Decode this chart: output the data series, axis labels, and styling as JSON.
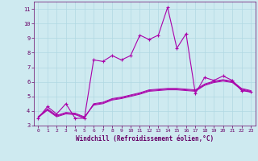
{
  "xlabel": "Windchill (Refroidissement éolien,°C)",
  "bg_color": "#ceeaf0",
  "grid_color": "#b0d8e2",
  "line_color": "#aa00aa",
  "xlim": [
    -0.5,
    23.5
  ],
  "ylim": [
    3.0,
    11.5
  ],
  "yticks": [
    3,
    4,
    5,
    6,
    7,
    8,
    9,
    10,
    11
  ],
  "xticks": [
    0,
    1,
    2,
    3,
    4,
    5,
    6,
    7,
    8,
    9,
    10,
    11,
    12,
    13,
    14,
    15,
    16,
    17,
    18,
    19,
    20,
    21,
    22,
    23
  ],
  "s1_x": [
    0,
    1,
    2,
    3,
    4,
    5,
    6,
    7,
    8,
    9,
    10,
    11,
    12,
    13,
    14,
    15,
    16,
    17,
    18,
    19,
    20,
    21,
    22,
    23
  ],
  "s1_y": [
    3.5,
    4.3,
    3.8,
    4.5,
    3.5,
    3.5,
    7.5,
    7.4,
    7.8,
    7.5,
    7.8,
    9.2,
    8.9,
    9.2,
    11.1,
    8.3,
    9.3,
    5.2,
    6.3,
    6.1,
    6.4,
    6.1,
    5.4,
    5.3
  ],
  "s2_x": [
    0,
    1,
    2,
    3,
    4,
    5,
    6,
    7,
    8,
    9,
    10,
    11,
    12,
    13,
    14,
    15,
    16,
    17,
    18,
    19,
    20,
    21,
    22,
    23
  ],
  "s2_y": [
    3.6,
    4.15,
    3.7,
    3.9,
    3.85,
    3.6,
    4.4,
    4.5,
    4.75,
    4.85,
    5.0,
    5.15,
    5.35,
    5.4,
    5.45,
    5.45,
    5.4,
    5.35,
    5.75,
    5.95,
    6.05,
    5.95,
    5.45,
    5.3
  ],
  "s3_x": [
    0,
    1,
    2,
    3,
    4,
    5,
    6,
    7,
    8,
    9,
    10,
    11,
    12,
    13,
    14,
    15,
    16,
    17,
    18,
    19,
    20,
    21,
    22,
    23
  ],
  "s3_y": [
    3.6,
    4.1,
    3.65,
    3.85,
    3.8,
    3.55,
    4.45,
    4.55,
    4.8,
    4.9,
    5.05,
    5.2,
    5.4,
    5.45,
    5.5,
    5.5,
    5.45,
    5.4,
    5.8,
    6.0,
    6.1,
    6.0,
    5.5,
    5.35
  ],
  "s4_x": [
    0,
    1,
    2,
    3,
    4,
    5,
    6,
    7,
    8,
    9,
    10,
    11,
    12,
    13,
    14,
    15,
    16,
    17,
    18,
    19,
    20,
    21,
    22,
    23
  ],
  "s4_y": [
    3.55,
    4.05,
    3.6,
    3.8,
    3.75,
    3.5,
    4.5,
    4.6,
    4.85,
    4.95,
    5.1,
    5.25,
    5.45,
    5.5,
    5.55,
    5.55,
    5.5,
    5.45,
    5.85,
    6.05,
    6.15,
    6.05,
    5.55,
    5.4
  ]
}
